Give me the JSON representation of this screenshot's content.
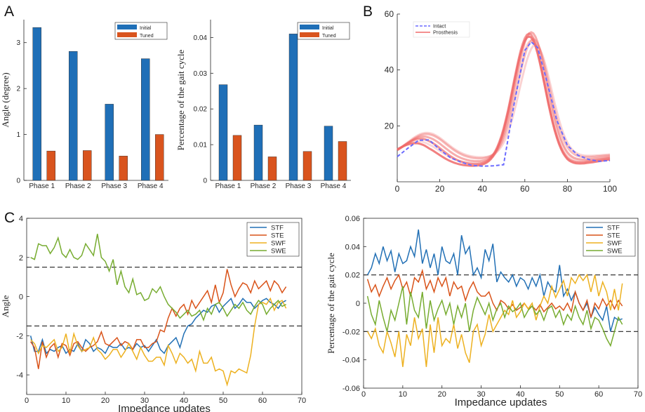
{
  "panel_labels": {
    "a": "A",
    "b": "B",
    "c": "C"
  },
  "colors": {
    "initial": "#1f6fb7",
    "tuned": "#d9541e",
    "intact": "#6b6bff",
    "prosthesis": "#f06a6a",
    "STF": "#2270b5",
    "STE": "#d95319",
    "SWF": "#edb120",
    "SWE": "#77ac30"
  },
  "chart_data": [
    {
      "id": "A_left",
      "type": "bar",
      "categories": [
        "Phase 1",
        "Phase 2",
        "Phase 3",
        "Phase 4"
      ],
      "series": [
        {
          "name": "Initial",
          "values": [
            3.33,
            2.81,
            1.66,
            2.65
          ]
        },
        {
          "name": "Tuned",
          "values": [
            0.64,
            0.65,
            0.53,
            1.0
          ]
        }
      ],
      "ylabel": "Angle (degree)",
      "ylim": [
        0,
        3.5
      ],
      "yticks": [
        0,
        1,
        2,
        3
      ],
      "legend": "top-right"
    },
    {
      "id": "A_right",
      "type": "bar",
      "categories": [
        "Phase 1",
        "Phase 2",
        "Phase 3",
        "Phase 4"
      ],
      "series": [
        {
          "name": "Initial",
          "values": [
            0.0268,
            0.0155,
            0.041,
            0.0152
          ]
        },
        {
          "name": "Tuned",
          "values": [
            0.0126,
            0.0066,
            0.0081,
            0.0109
          ]
        }
      ],
      "ylabel": "Percentage of the gait cycle",
      "ylim": [
        0,
        0.045
      ],
      "yticks": [
        "0",
        "0.01",
        "0.02",
        "0.03",
        "0.04"
      ],
      "legend": "top-right"
    },
    {
      "id": "B",
      "type": "line",
      "series_names": [
        "Intact",
        "Prosthesis"
      ],
      "xlim": [
        0,
        100
      ],
      "ylim": [
        0,
        60
      ],
      "xticks": [
        0,
        20,
        40,
        60,
        80,
        100
      ],
      "yticks": [
        20,
        40,
        60
      ],
      "intact": {
        "x": [
          0,
          5,
          10,
          15,
          20,
          25,
          30,
          35,
          40,
          45,
          50,
          55,
          60,
          63,
          66,
          70,
          75,
          80,
          85,
          90,
          95,
          100
        ],
        "y": [
          9,
          12,
          14.8,
          15,
          11.5,
          8.6,
          7,
          5.9,
          5.6,
          5.7,
          6.1,
          28,
          47,
          50,
          48,
          37,
          22,
          13,
          9.5,
          8,
          7.3,
          7.6
        ]
      },
      "prosthesis_curves": [
        {
          "peak1": 13,
          "x1": 10,
          "min": 5.5,
          "peak2": 52,
          "x2": 62,
          "end": 8,
          "opacity": 0.85
        },
        {
          "peak1": 15,
          "x1": 12,
          "min": 6.0,
          "peak2": 53,
          "x2": 62,
          "end": 8.5,
          "opacity": 0.7
        },
        {
          "peak1": 16,
          "x1": 13,
          "min": 7.0,
          "peak2": 53.5,
          "x2": 63,
          "end": 9,
          "opacity": 0.55
        },
        {
          "peak1": 17,
          "x1": 14,
          "min": 8.0,
          "peak2": 51,
          "x2": 64,
          "end": 9.5,
          "opacity": 0.45
        },
        {
          "peak1": 17.5,
          "x1": 14,
          "min": 8.5,
          "peak2": 49,
          "x2": 65,
          "end": 9.8,
          "opacity": 0.3
        },
        {
          "peak1": 14,
          "x1": 11,
          "min": 6.5,
          "peak2": 50.5,
          "x2": 63,
          "end": 8.5,
          "opacity": 0.25
        }
      ],
      "legend": "top-left"
    },
    {
      "id": "C_left",
      "type": "line",
      "xlabel": "Impedance updates",
      "ylabel": "Angle",
      "xlim": [
        0,
        70
      ],
      "ylim": [
        -5,
        4
      ],
      "xticks": [
        0,
        10,
        20,
        30,
        40,
        50,
        60,
        70
      ],
      "yticks": [
        -4,
        -2,
        0,
        2,
        4
      ],
      "thresholds": [
        1.5,
        -1.5
      ],
      "legend": "top-right",
      "series": [
        {
          "name": "STF",
          "values": [
            -2,
            -2.8,
            -2.8,
            -2.2,
            -2.9,
            -2.7,
            -2.8,
            -2.6,
            -2.5,
            -2.9,
            -2.7,
            -2.8,
            -2.4,
            -2.8,
            -2.2,
            -2.4,
            -2.8,
            -2.6,
            -2.7,
            -2.9,
            -2.5,
            -2.6,
            -2.6,
            -2.4,
            -2.7,
            -2.6,
            -2.7,
            -2.4,
            -2.6,
            -2.5,
            -2.8,
            -2.5,
            -2.2,
            -2.7,
            -2.9,
            -2.5,
            -2.3,
            -2.1,
            -2.6,
            -1.9,
            -1.5,
            -1.4,
            -1.1,
            -0.9,
            -0.7,
            -0.8,
            -0.5,
            -0.4,
            -0.8,
            -0.5,
            -0.3,
            -0.1,
            -0.6,
            -0.4,
            -0.1,
            -0.3,
            -0.3,
            -0.6,
            -0.4,
            -0.2,
            -0.1,
            -0.3,
            -0.4,
            -0.6,
            -0.3,
            -0.2
          ]
        },
        {
          "name": "STE",
          "values": [
            -2.3,
            -2.6,
            -3.7,
            -2.3,
            -3.1,
            -2.6,
            -2.4,
            -3.1,
            -2.4,
            -2.5,
            -3.0,
            -2.4,
            -2.3,
            -2.6,
            -2.8,
            -2.6,
            -2.5,
            -2.3,
            -1.8,
            -2.4,
            -2.5,
            -2.3,
            -2.1,
            -2.5,
            -2.3,
            -2.4,
            -2.7,
            -2.2,
            -2.2,
            -2.6,
            -2.6,
            -2.4,
            -2.3,
            -1.7,
            -1.8,
            -1.1,
            -0.6,
            -1.0,
            -0.6,
            -0.4,
            -0.9,
            -0.2,
            -0.6,
            -0.3,
            0.0,
            0.3,
            -0.3,
            0.6,
            -0.3,
            0.2,
            1.4,
            0.6,
            0.0,
            0.4,
            0.7,
            0.6,
            0.2,
            0.8,
            0.4,
            0.6,
            0.8,
            0.3,
            0.8,
            0.6,
            0.2,
            0.5
          ]
        },
        {
          "name": "SWF",
          "values": [
            -2.2,
            -2.4,
            -2.9,
            -2.5,
            -2.6,
            -2.4,
            -2.2,
            -2.8,
            -2.6,
            -1.9,
            -2.9,
            -1.9,
            -2.5,
            -2.8,
            -2.7,
            -2.6,
            -2.1,
            -2.7,
            -2.9,
            -3.2,
            -3.0,
            -2.7,
            -2.7,
            -3.1,
            -2.8,
            -2.4,
            -2.8,
            -3.2,
            -2.6,
            -3.0,
            -3.3,
            -3.3,
            -3.1,
            -3.1,
            -3.5,
            -2.5,
            -2.9,
            -3.4,
            -2.9,
            -3.1,
            -3.4,
            -3.2,
            -3.8,
            -2.8,
            -3.4,
            -3.4,
            -3.1,
            -3.8,
            -3.7,
            -3.8,
            -4.5,
            -3.8,
            -3.9,
            -3.7,
            -3.8,
            -3.9,
            -3.0,
            -1.5,
            -0.4,
            -0.3,
            -0.4,
            -0.1,
            -0.7,
            -0.3,
            -0.2,
            -0.6
          ]
        },
        {
          "name": "SWE",
          "values": [
            2.0,
            1.9,
            2.7,
            2.6,
            2.6,
            2.2,
            2.5,
            3.0,
            2.2,
            2.0,
            2.4,
            2.0,
            1.9,
            2.1,
            2.7,
            2.4,
            2.1,
            3.2,
            2.0,
            1.8,
            1.3,
            1.9,
            0.6,
            1.3,
            0.5,
            0.2,
            0.9,
            0.1,
            0.2,
            -0.2,
            -0.1,
            0.4,
            0.2,
            0.5,
            0.0,
            -0.4,
            -0.6,
            -0.8,
            -1.1,
            -0.9,
            -0.7,
            -1.0,
            -0.9,
            -0.7,
            -1.2,
            -0.6,
            -0.9,
            -0.4,
            -0.3,
            -0.6,
            -1.0,
            -0.7,
            -0.4,
            -0.6,
            -0.3,
            -0.7,
            -0.9,
            -0.5,
            -0.2,
            -0.4,
            -0.9,
            -0.6,
            -0.4,
            -0.2,
            -0.5,
            -0.4
          ]
        }
      ]
    },
    {
      "id": "C_right",
      "type": "line",
      "xlabel": "Impedance updates",
      "ylabel": "Percentage of the gait cycle",
      "xlim": [
        0,
        70
      ],
      "ylim": [
        -0.06,
        0.06
      ],
      "xticks": [
        0,
        10,
        20,
        30,
        40,
        50,
        60,
        70
      ],
      "yticks": [
        "-0.06",
        "-0.04",
        "-0.02",
        "0",
        "0.02",
        "0.04",
        "0.06"
      ],
      "thresholds": [
        0.02,
        -0.02
      ],
      "legend": "top-right",
      "series": [
        {
          "name": "STF",
          "values": [
            0.02,
            0.025,
            0.035,
            0.028,
            0.04,
            0.03,
            0.037,
            0.022,
            0.035,
            0.028,
            0.03,
            0.04,
            0.033,
            0.052,
            0.028,
            0.038,
            0.025,
            0.035,
            0.02,
            0.04,
            0.03,
            0.028,
            0.035,
            0.02,
            0.048,
            0.035,
            0.04,
            0.02,
            0.025,
            0.018,
            0.038,
            0.03,
            0.042,
            0.015,
            0.022,
            0.018,
            0.015,
            0.02,
            0.012,
            0.018,
            0.016,
            0.01,
            0.018,
            0.012,
            0.02,
            0.005,
            0.015,
            0.01,
            0.008,
            0.027,
            0.005,
            0.01,
            0.002,
            0.008,
            0.0,
            -0.005,
            0.0,
            -0.01,
            -0.003,
            -0.008,
            -0.012,
            -0.002,
            -0.02,
            -0.01,
            -0.012,
            -0.011
          ]
        },
        {
          "name": "STE",
          "values": [
            0.017,
            0.008,
            0.013,
            0.005,
            0.012,
            0.018,
            0.01,
            0.016,
            0.02,
            0.01,
            0.015,
            0.005,
            0.018,
            0.015,
            0.023,
            0.01,
            0.016,
            0.008,
            0.018,
            0.012,
            0.018,
            0.005,
            0.015,
            0.01,
            0.012,
            0.002,
            0.01,
            0.015,
            0.008,
            0.005,
            0.005,
            0.008,
            0.0,
            -0.005,
            0.002,
            0.0,
            -0.004,
            -0.001,
            -0.005,
            -0.003,
            0.0,
            -0.004,
            -0.002,
            -0.005,
            -0.001,
            -0.006,
            -0.003,
            0.0,
            -0.004,
            -0.002,
            -0.005,
            0.0,
            -0.006,
            0.008,
            0.0,
            -0.005,
            0.002,
            -0.01,
            0.0,
            -0.004,
            0.003,
            -0.002,
            0.002,
            -0.004,
            0.002,
            -0.002
          ]
        },
        {
          "name": "SWF",
          "values": [
            -0.02,
            -0.025,
            -0.018,
            -0.03,
            -0.035,
            -0.02,
            -0.028,
            -0.038,
            -0.02,
            -0.045,
            -0.022,
            -0.03,
            -0.01,
            -0.025,
            -0.018,
            -0.045,
            -0.015,
            -0.035,
            -0.01,
            -0.03,
            -0.025,
            -0.028,
            -0.015,
            -0.032,
            -0.022,
            -0.035,
            -0.042,
            -0.02,
            -0.015,
            -0.03,
            -0.022,
            -0.008,
            -0.02,
            -0.015,
            -0.01,
            -0.005,
            -0.008,
            0.002,
            -0.01,
            -0.006,
            0.0,
            -0.004,
            0.0,
            -0.012,
            -0.002,
            0.005,
            0.0,
            0.012,
            0.004,
            0.01,
            0.016,
            0.005,
            0.018,
            0.014,
            0.02,
            0.016,
            0.02,
            0.008,
            0.02,
            0.005,
            0.015,
            0.008,
            -0.005,
            0.01,
            -0.005,
            0.014
          ]
        },
        {
          "name": "SWE",
          "values": [
            0.005,
            -0.008,
            -0.015,
            0.002,
            -0.01,
            -0.02,
            -0.005,
            -0.012,
            0.0,
            0.012,
            -0.015,
            0.008,
            -0.005,
            -0.01,
            0.008,
            -0.018,
            0.002,
            -0.012,
            -0.004,
            0.002,
            -0.008,
            0.0,
            -0.015,
            -0.002,
            -0.01,
            0.0,
            -0.02,
            -0.005,
            0.004,
            -0.002,
            -0.008,
            0.0,
            -0.012,
            -0.004,
            0.0,
            -0.01,
            -0.002,
            -0.006,
            -0.004,
            0.0,
            -0.01,
            -0.005,
            -0.002,
            -0.008,
            -0.005,
            -0.012,
            -0.004,
            -0.002,
            -0.01,
            -0.005,
            -0.015,
            -0.008,
            -0.012,
            -0.002,
            -0.01,
            -0.015,
            -0.005,
            -0.018,
            -0.01,
            -0.012,
            -0.018,
            -0.025,
            -0.03,
            -0.02,
            -0.01,
            -0.015
          ]
        }
      ]
    }
  ]
}
